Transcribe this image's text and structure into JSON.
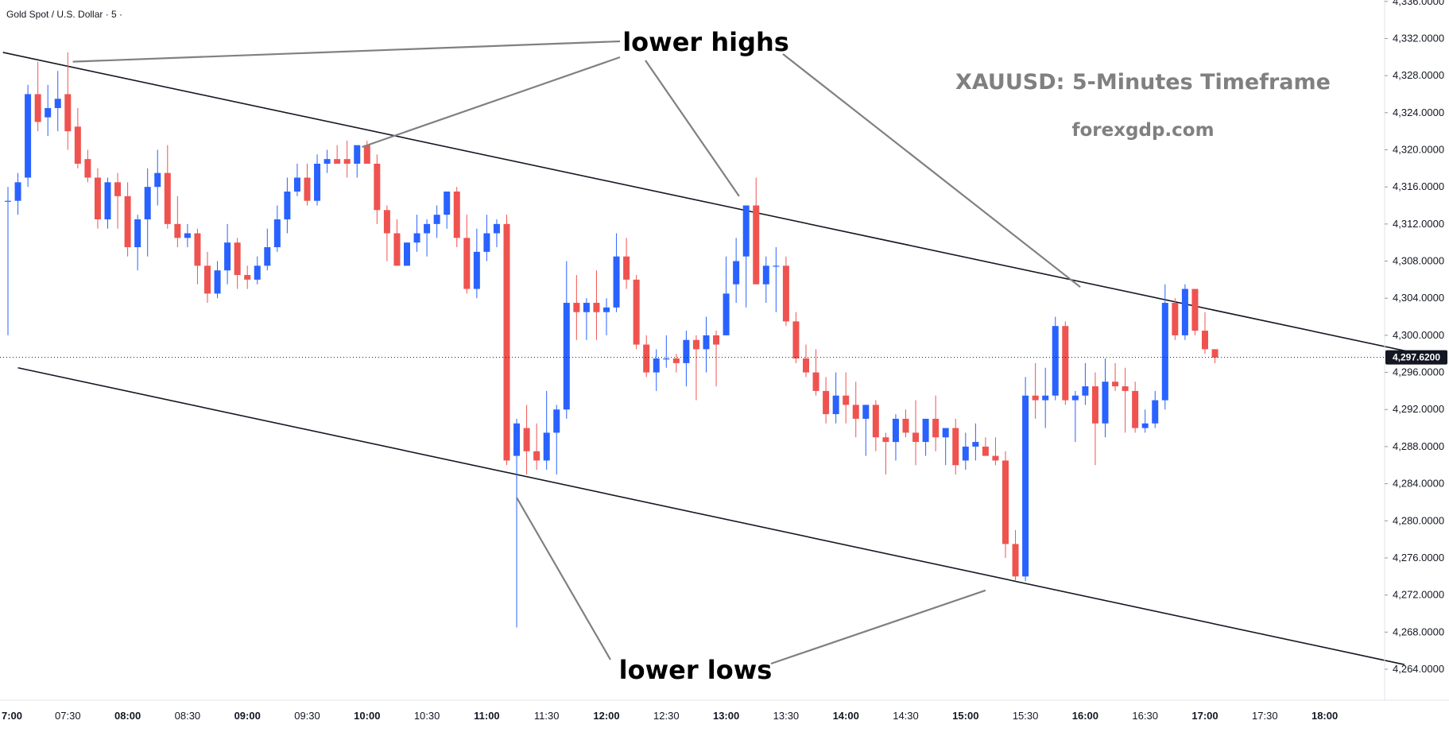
{
  "chart_data": {
    "type": "candlestick",
    "instrument_label": "Gold Spot / U.S. Dollar · 5 ·",
    "title": "XAUUSD: 5-Minutes Timeframe",
    "subtitle": "forexgdp.com",
    "current_price": "4,297.6200",
    "colors": {
      "up": "#2962ff",
      "down": "#ef5350",
      "trendline": "#131722",
      "pointer": "#808080",
      "price_tag": "#131722"
    },
    "ylim": [
      4262,
      4337
    ],
    "y_ticks": [
      "4,264.0000",
      "4,268.0000",
      "4,272.0000",
      "4,276.0000",
      "4,280.0000",
      "4,284.0000",
      "4,288.0000",
      "4,292.0000",
      "4,296.0000",
      "4,300.0000",
      "4,304.0000",
      "4,308.0000",
      "4,312.0000",
      "4,316.0000",
      "4,320.0000",
      "4,324.0000",
      "4,328.0000",
      "4,332.0000",
      "4,336.0000"
    ],
    "y_tick_values": [
      4264,
      4268,
      4272,
      4276,
      4280,
      4284,
      4288,
      4292,
      4296,
      4300,
      4304,
      4308,
      4312,
      4316,
      4320,
      4324,
      4328,
      4332,
      4336
    ],
    "x_ticks": [
      {
        "label": "7:00",
        "bar": 0,
        "major": true
      },
      {
        "label": "07:30",
        "bar": 6,
        "major": false
      },
      {
        "label": "08:00",
        "bar": 12,
        "major": true
      },
      {
        "label": "08:30",
        "bar": 18,
        "major": false
      },
      {
        "label": "09:00",
        "bar": 24,
        "major": true
      },
      {
        "label": "09:30",
        "bar": 30,
        "major": false
      },
      {
        "label": "10:00",
        "bar": 36,
        "major": true
      },
      {
        "label": "10:30",
        "bar": 42,
        "major": false
      },
      {
        "label": "11:00",
        "bar": 48,
        "major": true
      },
      {
        "label": "11:30",
        "bar": 54,
        "major": false
      },
      {
        "label": "12:00",
        "bar": 60,
        "major": true
      },
      {
        "label": "12:30",
        "bar": 66,
        "major": false
      },
      {
        "label": "13:00",
        "bar": 72,
        "major": true
      },
      {
        "label": "13:30",
        "bar": 78,
        "major": false
      },
      {
        "label": "14:00",
        "bar": 84,
        "major": true
      },
      {
        "label": "14:30",
        "bar": 90,
        "major": false
      },
      {
        "label": "15:00",
        "bar": 96,
        "major": true
      },
      {
        "label": "15:30",
        "bar": 102,
        "major": false
      },
      {
        "label": "16:00",
        "bar": 108,
        "major": true
      },
      {
        "label": "16:30",
        "bar": 114,
        "major": false
      },
      {
        "label": "17:00",
        "bar": 120,
        "major": true
      },
      {
        "label": "17:30",
        "bar": 126,
        "major": false
      },
      {
        "label": "18:00",
        "bar": 132,
        "major": true
      }
    ],
    "candles": [
      {
        "o": 4314.5,
        "h": 4316.0,
        "l": 4300.0,
        "c": 4314.5
      },
      {
        "o": 4314.5,
        "h": 4317.5,
        "l": 4313.0,
        "c": 4316.5
      },
      {
        "o": 4317.0,
        "h": 4327.0,
        "l": 4316.0,
        "c": 4326.0
      },
      {
        "o": 4326.0,
        "h": 4329.5,
        "l": 4322.0,
        "c": 4323.0
      },
      {
        "o": 4323.5,
        "h": 4327.0,
        "l": 4321.5,
        "c": 4324.5
      },
      {
        "o": 4324.5,
        "h": 4328.5,
        "l": 4322.0,
        "c": 4325.5
      },
      {
        "o": 4326.0,
        "h": 4330.5,
        "l": 4320.0,
        "c": 4322.0
      },
      {
        "o": 4322.5,
        "h": 4324.5,
        "l": 4318.0,
        "c": 4318.5
      },
      {
        "o": 4319.0,
        "h": 4320.0,
        "l": 4316.5,
        "c": 4317.0
      },
      {
        "o": 4317.0,
        "h": 4318.0,
        "l": 4311.5,
        "c": 4312.5
      },
      {
        "o": 4312.5,
        "h": 4317.0,
        "l": 4311.5,
        "c": 4316.5
      },
      {
        "o": 4316.5,
        "h": 4317.5,
        "l": 4311.5,
        "c": 4315.0
      },
      {
        "o": 4315.0,
        "h": 4316.5,
        "l": 4308.5,
        "c": 4309.5
      },
      {
        "o": 4309.5,
        "h": 4313.0,
        "l": 4307.0,
        "c": 4312.5
      },
      {
        "o": 4312.5,
        "h": 4318.0,
        "l": 4308.5,
        "c": 4316.0
      },
      {
        "o": 4316.0,
        "h": 4320.0,
        "l": 4314.0,
        "c": 4317.5
      },
      {
        "o": 4317.5,
        "h": 4320.5,
        "l": 4311.5,
        "c": 4312.0
      },
      {
        "o": 4312.0,
        "h": 4315.0,
        "l": 4309.5,
        "c": 4310.5
      },
      {
        "o": 4310.5,
        "h": 4312.0,
        "l": 4309.5,
        "c": 4311.0
      },
      {
        "o": 4311.0,
        "h": 4311.5,
        "l": 4305.5,
        "c": 4307.5
      },
      {
        "o": 4307.5,
        "h": 4309.0,
        "l": 4303.5,
        "c": 4304.5
      },
      {
        "o": 4304.5,
        "h": 4308.0,
        "l": 4304.0,
        "c": 4307.0
      },
      {
        "o": 4307.0,
        "h": 4312.0,
        "l": 4305.5,
        "c": 4310.0
      },
      {
        "o": 4310.0,
        "h": 4310.5,
        "l": 4305.0,
        "c": 4306.5
      },
      {
        "o": 4306.5,
        "h": 4307.5,
        "l": 4305.0,
        "c": 4306.0
      },
      {
        "o": 4306.0,
        "h": 4308.5,
        "l": 4305.5,
        "c": 4307.5
      },
      {
        "o": 4307.5,
        "h": 4311.5,
        "l": 4307.0,
        "c": 4309.5
      },
      {
        "o": 4309.5,
        "h": 4314.0,
        "l": 4309.0,
        "c": 4312.5
      },
      {
        "o": 4312.5,
        "h": 4317.0,
        "l": 4311.0,
        "c": 4315.5
      },
      {
        "o": 4315.5,
        "h": 4318.5,
        "l": 4315.0,
        "c": 4317.0
      },
      {
        "o": 4317.0,
        "h": 4318.5,
        "l": 4314.0,
        "c": 4314.5
      },
      {
        "o": 4314.5,
        "h": 4319.5,
        "l": 4314.0,
        "c": 4318.5
      },
      {
        "o": 4318.5,
        "h": 4320.0,
        "l": 4317.5,
        "c": 4319.0
      },
      {
        "o": 4319.0,
        "h": 4320.5,
        "l": 4318.5,
        "c": 4318.5
      },
      {
        "o": 4319.0,
        "h": 4321.0,
        "l": 4317.0,
        "c": 4318.5
      },
      {
        "o": 4318.5,
        "h": 4320.0,
        "l": 4317.0,
        "c": 4320.5
      },
      {
        "o": 4320.5,
        "h": 4321.0,
        "l": 4319.0,
        "c": 4318.5
      },
      {
        "o": 4318.5,
        "h": 4319.5,
        "l": 4312.0,
        "c": 4313.5
      },
      {
        "o": 4313.5,
        "h": 4314.0,
        "l": 4308.0,
        "c": 4311.0
      },
      {
        "o": 4311.0,
        "h": 4312.5,
        "l": 4307.5,
        "c": 4307.5
      },
      {
        "o": 4307.5,
        "h": 4310.0,
        "l": 4307.5,
        "c": 4310.0
      },
      {
        "o": 4310.0,
        "h": 4313.0,
        "l": 4309.0,
        "c": 4311.0
      },
      {
        "o": 4311.0,
        "h": 4312.5,
        "l": 4308.5,
        "c": 4312.0
      },
      {
        "o": 4312.0,
        "h": 4314.0,
        "l": 4310.5,
        "c": 4313.0
      },
      {
        "o": 4313.0,
        "h": 4315.5,
        "l": 4311.5,
        "c": 4315.5
      },
      {
        "o": 4315.5,
        "h": 4316.0,
        "l": 4309.5,
        "c": 4310.5
      },
      {
        "o": 4310.5,
        "h": 4313.0,
        "l": 4304.5,
        "c": 4305.0
      },
      {
        "o": 4305.0,
        "h": 4311.5,
        "l": 4304.0,
        "c": 4309.0
      },
      {
        "o": 4309.0,
        "h": 4313.0,
        "l": 4308.0,
        "c": 4311.0
      },
      {
        "o": 4311.0,
        "h": 4312.5,
        "l": 4309.5,
        "c": 4312.0
      },
      {
        "o": 4312.0,
        "h": 4313.0,
        "l": 4286.0,
        "c": 4286.5
      },
      {
        "o": 4287.0,
        "h": 4291.0,
        "l": 4268.5,
        "c": 4290.5
      },
      {
        "o": 4290.0,
        "h": 4292.5,
        "l": 4285.0,
        "c": 4287.5
      },
      {
        "o": 4287.5,
        "h": 4290.5,
        "l": 4285.5,
        "c": 4286.5
      },
      {
        "o": 4286.5,
        "h": 4294.0,
        "l": 4285.5,
        "c": 4289.5
      },
      {
        "o": 4289.5,
        "h": 4292.5,
        "l": 4285.0,
        "c": 4292.0
      },
      {
        "o": 4292.0,
        "h": 4308.0,
        "l": 4291.0,
        "c": 4303.5
      },
      {
        "o": 4303.5,
        "h": 4306.5,
        "l": 4299.5,
        "c": 4302.5
      },
      {
        "o": 4302.5,
        "h": 4304.0,
        "l": 4299.5,
        "c": 4303.5
      },
      {
        "o": 4303.5,
        "h": 4307.0,
        "l": 4299.5,
        "c": 4302.5
      },
      {
        "o": 4302.5,
        "h": 4304.0,
        "l": 4300.0,
        "c": 4303.0
      },
      {
        "o": 4303.0,
        "h": 4311.0,
        "l": 4302.5,
        "c": 4308.5
      },
      {
        "o": 4308.5,
        "h": 4310.5,
        "l": 4305.0,
        "c": 4306.0
      },
      {
        "o": 4306.0,
        "h": 4306.5,
        "l": 4298.5,
        "c": 4299.0
      },
      {
        "o": 4299.0,
        "h": 4300.0,
        "l": 4295.5,
        "c": 4296.0
      },
      {
        "o": 4296.0,
        "h": 4298.5,
        "l": 4294.0,
        "c": 4297.5
      },
      {
        "o": 4297.5,
        "h": 4300.0,
        "l": 4296.5,
        "c": 4297.5
      },
      {
        "o": 4297.5,
        "h": 4298.0,
        "l": 4296.0,
        "c": 4297.0
      },
      {
        "o": 4297.0,
        "h": 4300.5,
        "l": 4294.5,
        "c": 4299.5
      },
      {
        "o": 4299.5,
        "h": 4300.0,
        "l": 4293.0,
        "c": 4298.5
      },
      {
        "o": 4298.5,
        "h": 4302.0,
        "l": 4296.0,
        "c": 4300.0
      },
      {
        "o": 4300.0,
        "h": 4300.5,
        "l": 4294.5,
        "c": 4299.0
      },
      {
        "o": 4300.0,
        "h": 4308.5,
        "l": 4300.0,
        "c": 4304.5
      },
      {
        "o": 4305.5,
        "h": 4310.5,
        "l": 4303.5,
        "c": 4308.0
      },
      {
        "o": 4308.5,
        "h": 4314.0,
        "l": 4303.0,
        "c": 4314.0
      },
      {
        "o": 4314.0,
        "h": 4317.0,
        "l": 4305.5,
        "c": 4305.5
      },
      {
        "o": 4305.5,
        "h": 4308.5,
        "l": 4303.5,
        "c": 4307.5
      },
      {
        "o": 4307.5,
        "h": 4309.5,
        "l": 4302.5,
        "c": 4307.5
      },
      {
        "o": 4307.5,
        "h": 4308.5,
        "l": 4301.0,
        "c": 4301.5
      },
      {
        "o": 4301.5,
        "h": 4302.5,
        "l": 4297.0,
        "c": 4297.5
      },
      {
        "o": 4297.5,
        "h": 4299.0,
        "l": 4295.5,
        "c": 4296.0
      },
      {
        "o": 4296.0,
        "h": 4298.5,
        "l": 4293.5,
        "c": 4294.0
      },
      {
        "o": 4294.0,
        "h": 4295.5,
        "l": 4290.5,
        "c": 4291.5
      },
      {
        "o": 4291.5,
        "h": 4296.0,
        "l": 4290.5,
        "c": 4293.5
      },
      {
        "o": 4293.5,
        "h": 4296.0,
        "l": 4290.5,
        "c": 4292.5
      },
      {
        "o": 4292.5,
        "h": 4295.0,
        "l": 4289.0,
        "c": 4291.0
      },
      {
        "o": 4291.0,
        "h": 4292.5,
        "l": 4287.0,
        "c": 4292.5
      },
      {
        "o": 4292.5,
        "h": 4293.0,
        "l": 4287.5,
        "c": 4289.0
      },
      {
        "o": 4289.0,
        "h": 4289.5,
        "l": 4285.0,
        "c": 4288.5
      },
      {
        "o": 4288.5,
        "h": 4291.5,
        "l": 4286.5,
        "c": 4291.0
      },
      {
        "o": 4291.0,
        "h": 4292.0,
        "l": 4289.0,
        "c": 4289.5
      },
      {
        "o": 4289.5,
        "h": 4293.0,
        "l": 4286.0,
        "c": 4288.5
      },
      {
        "o": 4288.5,
        "h": 4291.0,
        "l": 4287.0,
        "c": 4291.0
      },
      {
        "o": 4291.0,
        "h": 4293.5,
        "l": 4287.5,
        "c": 4289.0
      },
      {
        "o": 4289.0,
        "h": 4290.0,
        "l": 4286.0,
        "c": 4290.0
      },
      {
        "o": 4290.0,
        "h": 4291.0,
        "l": 4285.0,
        "c": 4286.0
      },
      {
        "o": 4286.5,
        "h": 4289.5,
        "l": 4285.5,
        "c": 4288.0
      },
      {
        "o": 4288.0,
        "h": 4290.5,
        "l": 4286.5,
        "c": 4288.5
      },
      {
        "o": 4288.0,
        "h": 4289.0,
        "l": 4287.0,
        "c": 4287.0
      },
      {
        "o": 4287.0,
        "h": 4289.0,
        "l": 4286.0,
        "c": 4286.5
      },
      {
        "o": 4286.5,
        "h": 4287.5,
        "l": 4276.0,
        "c": 4277.5
      },
      {
        "o": 4277.5,
        "h": 4279.0,
        "l": 4273.5,
        "c": 4274.0
      },
      {
        "o": 4274.0,
        "h": 4295.5,
        "l": 4273.5,
        "c": 4293.5
      },
      {
        "o": 4293.5,
        "h": 4297.0,
        "l": 4291.0,
        "c": 4293.0
      },
      {
        "o": 4293.0,
        "h": 4296.5,
        "l": 4290.0,
        "c": 4293.5
      },
      {
        "o": 4293.5,
        "h": 4302.0,
        "l": 4293.0,
        "c": 4301.0
      },
      {
        "o": 4301.0,
        "h": 4301.5,
        "l": 4292.5,
        "c": 4293.0
      },
      {
        "o": 4293.0,
        "h": 4294.0,
        "l": 4288.5,
        "c": 4293.5
      },
      {
        "o": 4293.5,
        "h": 4297.0,
        "l": 4292.5,
        "c": 4294.5
      },
      {
        "o": 4294.5,
        "h": 4296.0,
        "l": 4286.0,
        "c": 4290.5
      },
      {
        "o": 4290.5,
        "h": 4297.5,
        "l": 4289.0,
        "c": 4295.0
      },
      {
        "o": 4295.0,
        "h": 4297.0,
        "l": 4294.0,
        "c": 4294.5
      },
      {
        "o": 4294.5,
        "h": 4296.5,
        "l": 4289.5,
        "c": 4294.0
      },
      {
        "o": 4294.0,
        "h": 4295.0,
        "l": 4289.5,
        "c": 4290.0
      },
      {
        "o": 4290.0,
        "h": 4292.0,
        "l": 4289.5,
        "c": 4290.5
      },
      {
        "o": 4290.5,
        "h": 4294.0,
        "l": 4290.0,
        "c": 4293.0
      },
      {
        "o": 4293.0,
        "h": 4305.5,
        "l": 4292.0,
        "c": 4303.5
      },
      {
        "o": 4303.5,
        "h": 4304.0,
        "l": 4299.5,
        "c": 4300.0
      },
      {
        "o": 4300.0,
        "h": 4305.5,
        "l": 4299.5,
        "c": 4305.0
      },
      {
        "o": 4305.0,
        "h": 4305.0,
        "l": 4300.0,
        "c": 4300.5
      },
      {
        "o": 4300.5,
        "h": 4302.5,
        "l": 4298.0,
        "c": 4298.5
      },
      {
        "o": 4298.5,
        "h": 4298.5,
        "l": 4297.0,
        "c": 4297.6
      }
    ],
    "trendlines": [
      {
        "name": "upper",
        "from": {
          "bar": -0.5,
          "price": 4330.5
        },
        "to": {
          "bar": 141.5,
          "price": 4298.0
        }
      },
      {
        "name": "lower",
        "from": {
          "bar": 1.0,
          "price": 4296.5
        },
        "to": {
          "bar": 140.0,
          "price": 4264.5
        }
      }
    ],
    "annotations": [
      {
        "text": "lower highs",
        "targets": [
          {
            "bar": 6.5,
            "price": 4329.5
          },
          {
            "bar": 35.5,
            "price": 4320.3
          },
          {
            "bar": 73.3,
            "price": 4315.0
          },
          {
            "bar": 107.5,
            "price": 4305.2
          }
        ]
      },
      {
        "text": "lower lows",
        "targets": [
          {
            "bar": 51.0,
            "price": 4282.5
          },
          {
            "bar": 98.0,
            "price": 4272.5
          }
        ]
      }
    ]
  }
}
